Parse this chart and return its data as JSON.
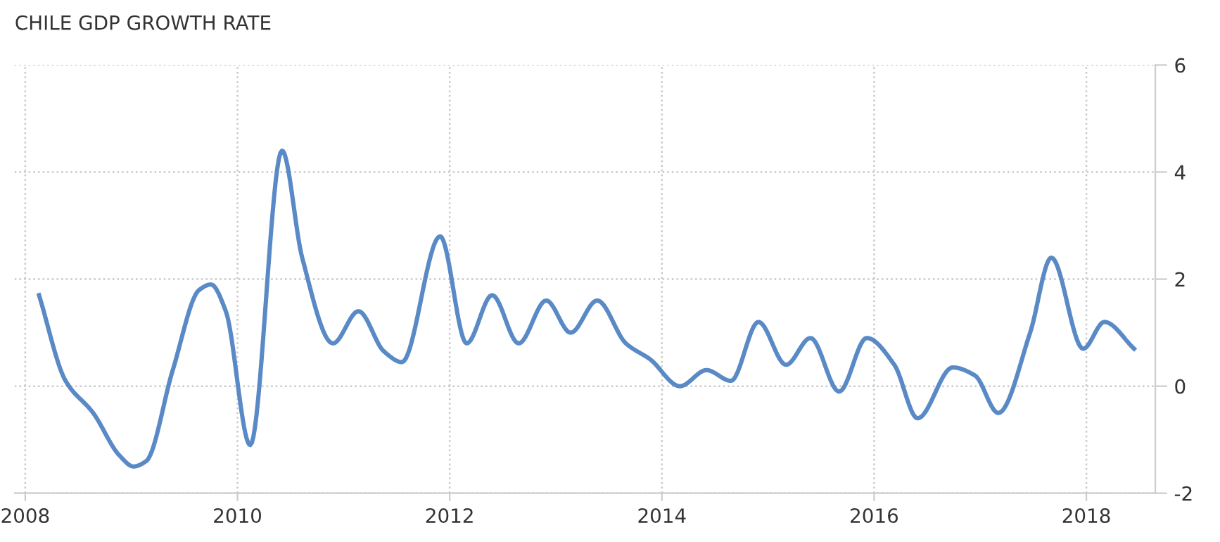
{
  "chart_data": {
    "type": "line",
    "title": "CHILE GDP GROWTH RATE",
    "x": [
      2008.13,
      2008.38,
      2008.64,
      2008.89,
      2009.02,
      2009.14,
      2009.39,
      2009.64,
      2009.75,
      2009.89,
      2010.12,
      2010.42,
      2010.61,
      2010.9,
      2011.14,
      2011.38,
      2011.55,
      2011.91,
      2012.16,
      2012.4,
      2012.65,
      2012.91,
      2013.14,
      2013.39,
      2013.66,
      2013.89,
      2014.17,
      2014.42,
      2014.65,
      2014.91,
      2015.17,
      2015.4,
      2015.67,
      2015.93,
      2016.19,
      2016.41,
      2016.74,
      2016.95,
      2017.17,
      2017.47,
      2017.67,
      2017.97,
      2018.17,
      2018.45
    ],
    "series": [
      {
        "color": "#5a8ac6",
        "values": [
          1.7,
          0.1,
          -0.5,
          -1.3,
          -1.5,
          -1.4,
          0.3,
          1.8,
          1.9,
          1.4,
          -1.1,
          4.4,
          2.4,
          0.8,
          1.4,
          0.65,
          0.45,
          2.8,
          0.8,
          1.7,
          0.8,
          1.6,
          1.0,
          1.6,
          0.8,
          0.5,
          0.0,
          0.3,
          0.1,
          1.2,
          0.4,
          0.9,
          -0.1,
          0.9,
          0.4,
          -0.6,
          0.35,
          0.2,
          -0.5,
          1.0,
          2.4,
          0.7,
          1.2,
          0.7
        ]
      }
    ],
    "xlim": [
      2007.9,
      2018.65
    ],
    "ylim": [
      -2,
      6
    ],
    "xticks": [
      2008,
      2010,
      2012,
      2014,
      2016,
      2018
    ],
    "yticks": [
      -2,
      0,
      2,
      4,
      6
    ],
    "grid": true,
    "legend": false,
    "marker": "none",
    "line_style": "solid"
  }
}
